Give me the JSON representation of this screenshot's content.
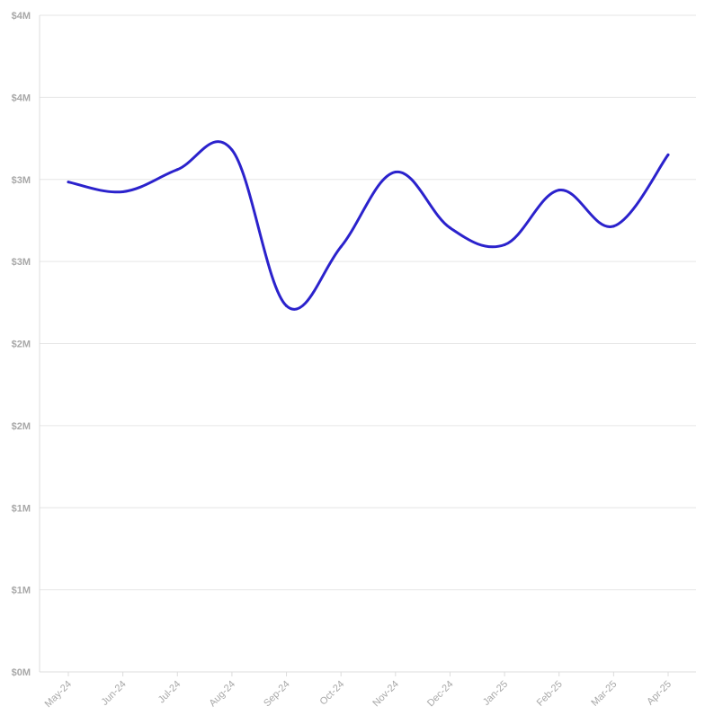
{
  "chart_data": {
    "type": "line",
    "title": "",
    "xlabel": "",
    "ylabel": "",
    "categories": [
      "May-24",
      "Jun-24",
      "Jul-24",
      "Aug-24",
      "Sep-24",
      "Oct-24",
      "Nov-24",
      "Dec-24",
      "Jan-25",
      "Feb-25",
      "Mar-25",
      "Apr-25"
    ],
    "series": [
      {
        "color": "#2b22cc",
        "values": [
          2984000,
          2925000,
          3060000,
          3180000,
          2230000,
          2590000,
          3045000,
          2705000,
          2602000,
          2935000,
          2715000,
          3150000
        ]
      }
    ],
    "ylim": [
      0,
      4000000
    ],
    "yticks": [
      0,
      500000,
      1000000,
      1500000,
      2000000,
      2500000,
      3000000,
      3500000,
      4000000
    ],
    "ytick_labels": [
      "$0M",
      "$1M",
      "$1M",
      "$2M",
      "$2M",
      "$3M",
      "$3M",
      "$4M",
      "$4M"
    ],
    "grid": true,
    "legend": "none"
  }
}
